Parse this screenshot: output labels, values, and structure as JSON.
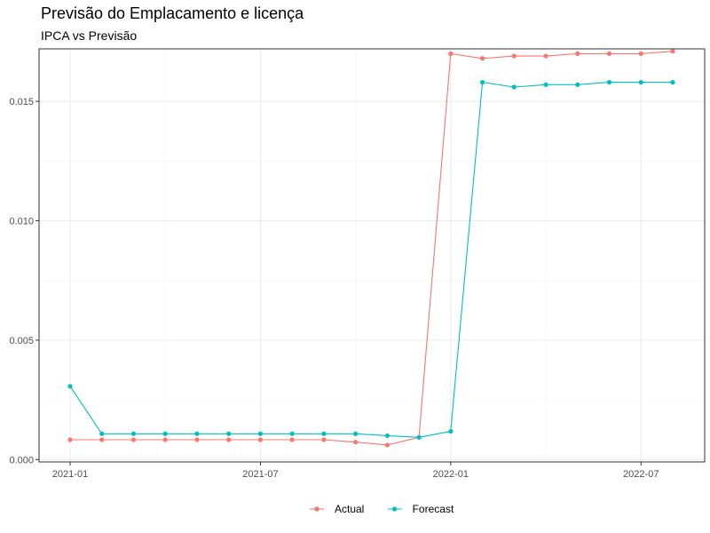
{
  "chart_data": {
    "type": "line",
    "title": "Previsão do Emplacamento e licença",
    "subtitle": "IPCA vs Previsão",
    "xlabel": "",
    "ylabel": "",
    "x": [
      "2021-01",
      "2021-02",
      "2021-03",
      "2021-04",
      "2021-05",
      "2021-06",
      "2021-07",
      "2021-08",
      "2021-09",
      "2021-10",
      "2021-11",
      "2021-12",
      "2022-01",
      "2022-02",
      "2022-03",
      "2022-04",
      "2022-05",
      "2022-06",
      "2022-07",
      "2022-08"
    ],
    "x_ticks": [
      "2021-01",
      "2021-07",
      "2022-01",
      "2022-07"
    ],
    "y_ticks": [
      0.0,
      0.005,
      0.01,
      0.015
    ],
    "y_tick_labels": [
      "0.000",
      "0.005",
      "0.010",
      "0.015"
    ],
    "ylim": [
      -0.0001,
      0.0172
    ],
    "grid": true,
    "legend_position": "bottom",
    "series": [
      {
        "name": "Actual",
        "color": "#f8766d",
        "values": [
          0.00083,
          0.00083,
          0.00083,
          0.00083,
          0.00083,
          0.00083,
          0.00083,
          0.00083,
          0.00083,
          0.00073,
          0.00061,
          0.00093,
          0.017,
          0.0168,
          0.0169,
          0.0169,
          0.017,
          0.017,
          0.017,
          0.0171
        ]
      },
      {
        "name": "Forecast",
        "color": "#00bfc4",
        "values": [
          0.00307,
          0.00108,
          0.00108,
          0.00108,
          0.00108,
          0.00108,
          0.00108,
          0.00108,
          0.00108,
          0.00108,
          0.001,
          0.00093,
          0.00118,
          0.0158,
          0.0156,
          0.0157,
          0.0157,
          0.0158,
          0.0158,
          0.0158
        ]
      }
    ]
  }
}
